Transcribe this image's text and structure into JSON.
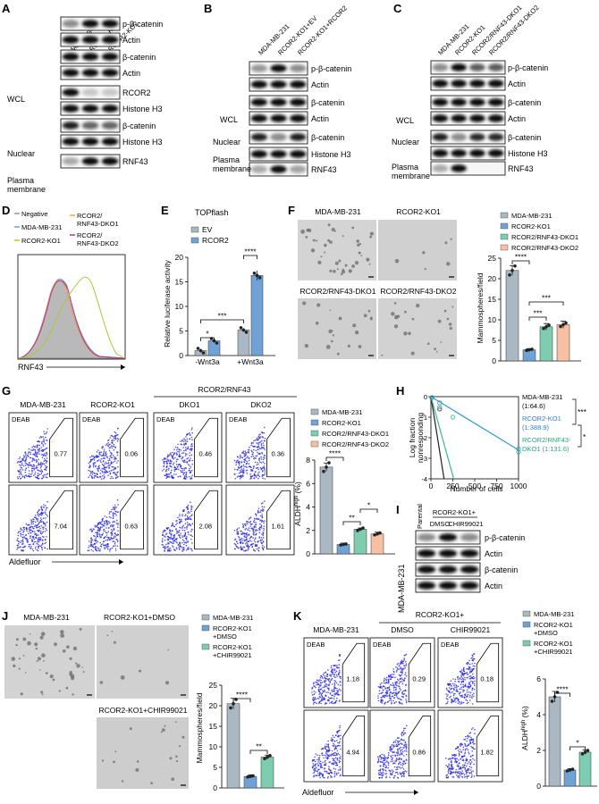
{
  "panels": {
    "A": {
      "letter": "A",
      "lanes": [
        "MDA-MB-231",
        "RCOR2-KO1",
        "RCOR2-KO2"
      ],
      "rows": [
        "p-β-catenin",
        "Actin",
        "β-catenin",
        "Actin",
        "RCOR2",
        "Histone H3",
        "β-catenin",
        "Histone H3",
        "RNF43"
      ],
      "groups": [
        "WCL",
        "Nuclear",
        "Plasma",
        "membrane"
      ]
    },
    "B": {
      "letter": "B",
      "lanes": [
        "MDA-MB-231",
        "RCOR2-KO1+EV",
        "RCOR2-KO1+RCOR2"
      ],
      "rows": [
        "p-β-catenin",
        "Actin",
        "β-catenin",
        "Actin",
        "β-catenin",
        "Histone H3",
        "RNF43"
      ],
      "groups": [
        "WCL",
        "Nuclear",
        "Plasma",
        "membrane"
      ]
    },
    "C": {
      "letter": "C",
      "lanes": [
        "MDA-MB-231",
        "RCOR2-KO1",
        "RCOR2/RNF43-DKO1",
        "RCOR2/RNF43-DKO2"
      ],
      "rows": [
        "p-β-catenin",
        "Actin",
        "β-catenin",
        "Actin",
        "β-catenin",
        "Histone H3",
        "RNF43"
      ],
      "groups": [
        "WCL",
        "Nuclear",
        "Plasma",
        "membrane"
      ]
    },
    "D": {
      "letter": "D",
      "legend": [
        "Negative",
        "MDA-MB-231",
        "RCOR2-KO1",
        "RCOR2/",
        "RNF43-DKO1",
        "RCOR2/",
        "RNF43-DKO2"
      ],
      "xlabel": "RNF43"
    },
    "E": {
      "letter": "E",
      "title": "TOPflash",
      "legend": [
        "EV",
        "RCOR2"
      ],
      "ylabel": "Relative luciferase activity",
      "xlabels": [
        "-Wnt3a",
        "+Wnt3a"
      ],
      "yticks": [
        "0",
        "5",
        "10",
        "15",
        "20"
      ],
      "sig": [
        "*",
        "***",
        "****"
      ]
    },
    "F": {
      "letter": "F",
      "images": [
        "MDA-MB-231",
        "RCOR2-KO1",
        "RCOR2/RNF43-DKO1",
        "RCOR2/RNF43-DKO2"
      ],
      "legend": [
        "MDA-MB-231",
        "RCOR2-KO1",
        "RCOR2/RNF43-DKO1",
        "RCOR2/RNF43-DKO2"
      ],
      "ylabel": "Mammospheres/field",
      "yticks": [
        "0",
        "5",
        "10",
        "15",
        "20",
        "25"
      ],
      "sig": [
        "****",
        "***",
        "***"
      ]
    },
    "G": {
      "letter": "G",
      "header": "RCOR2/RNF43",
      "columns": [
        "MDA-MB-231",
        "RCOR2-KO1",
        "DKO1",
        "DKO2"
      ],
      "deab": "DEAB",
      "gates_top": [
        "0.77",
        "0.06",
        "0.46",
        "0.36"
      ],
      "gates_bottom": [
        "7.04",
        "0.63",
        "2.08",
        "1.61"
      ],
      "xlabel": "Aldefluor",
      "legend": [
        "MDA-MB-231",
        "RCOR2-KO1",
        "RCOR2/RNF43-DKO1",
        "RCOR2/RNF43-DKO2"
      ],
      "ylabel": "ALDH",
      "ylabel_sup": "high",
      "ylabel_unit": " (%)",
      "yticks": [
        "0",
        "2",
        "4",
        "6",
        "8"
      ],
      "sig": [
        "****",
        "**",
        "*"
      ]
    },
    "H": {
      "letter": "H",
      "ylabel1": "Log fraction",
      "ylabel2": "nonresponding",
      "xlabel": "Number of cells",
      "xticks": [
        "0",
        "250",
        "500",
        "750",
        "1000"
      ],
      "yticks": [
        "0",
        "-1",
        "-2",
        "-3",
        "-4"
      ],
      "legend": [
        "MDA-MB-231",
        "(1:64.6)",
        "RCOR2-KO1",
        "(1:388.9)",
        "RCOR2/RNF43-",
        "DKO1 (1:131.6)"
      ],
      "sig": [
        "***",
        "*"
      ]
    },
    "I": {
      "letter": "I",
      "header": "RCOR2-KO1+",
      "lanes": [
        "Parental",
        "DMSO",
        "CHIR99021"
      ],
      "cell": "MDA-MB-231",
      "rows": [
        "p-β-catenin",
        "Actin",
        "β-catenin",
        "Actin"
      ]
    },
    "J": {
      "letter": "J",
      "images": [
        "MDA-MB-231",
        "RCOR2-KO1+DMSO",
        "RCOR2-KO1+CHIR99021"
      ],
      "legend": [
        "MDA-MB-231",
        "RCOR2-KO1",
        "+DMSO",
        "RCOR2-KO1",
        "+CHIR99021"
      ],
      "ylabel": "Mammospheres/field",
      "yticks": [
        "0",
        "5",
        "10",
        "15",
        "20",
        "25"
      ],
      "sig": [
        "****",
        "**"
      ]
    },
    "K": {
      "letter": "K",
      "header": "RCOR2-KO1+",
      "columns": [
        "MDA-MB-231",
        "DMSO",
        "CHIR99021"
      ],
      "deab": "DEAB",
      "gates_top": [
        "1.18",
        "0.29",
        "0.18"
      ],
      "gates_bottom": [
        "4.94",
        "0.86",
        "1.82"
      ],
      "xlabel": "Aldefluor",
      "legend": [
        "MDA-MB-231",
        "RCOR2-KO1",
        "+DMSO",
        "RCOR2-KO1",
        "+CHIR99021"
      ],
      "ylabel": "ALDH",
      "ylabel_sup": "high",
      "ylabel_unit": " (%)",
      "yticks": [
        "0",
        "2",
        "4",
        "6"
      ],
      "sig": [
        "****",
        "*"
      ]
    }
  },
  "colors": {
    "gray": "#a9b8c2",
    "blue": "#6fa3d6",
    "green": "#7fcdb0",
    "salmon": "#f7c0a3",
    "dots": "#2424e0"
  },
  "chart_data": [
    {
      "type": "bar",
      "panel": "E",
      "title": "TOPflash",
      "categories": [
        "-Wnt3a",
        "+Wnt3a"
      ],
      "series": [
        {
          "name": "EV",
          "values": [
            1.0,
            5.2
          ]
        },
        {
          "name": "RCOR2",
          "values": [
            3.0,
            16.3
          ]
        }
      ],
      "ylabel": "Relative luciferase activity",
      "ylim": [
        0,
        20
      ]
    },
    {
      "type": "bar",
      "panel": "F",
      "categories": [
        "MDA-MB-231",
        "RCOR2-KO1",
        "RCOR2/RNF43-DKO1",
        "RCOR2/RNF43-DKO2"
      ],
      "values": [
        22,
        2.7,
        8.3,
        8.8
      ],
      "ylabel": "Mammospheres/field",
      "ylim": [
        0,
        25
      ]
    },
    {
      "type": "bar",
      "panel": "G",
      "categories": [
        "MDA-MB-231",
        "RCOR2-KO1",
        "RCOR2/RNF43-DKO1",
        "RCOR2/RNF43-DKO2"
      ],
      "values": [
        7.4,
        0.8,
        2.1,
        1.7
      ],
      "ylabel": "ALDH high (%)",
      "ylim": [
        0,
        8
      ]
    },
    {
      "type": "line",
      "panel": "H",
      "xlabel": "Number of cells",
      "ylabel": "Log fraction nonresponding",
      "xlim": [
        0,
        1000
      ],
      "ylim": [
        -4,
        0
      ],
      "series": [
        {
          "name": "MDA-MB-231",
          "x": [
            0,
            150
          ],
          "y": [
            0,
            -4
          ]
        },
        {
          "name": "RCOR2-KO1",
          "x": [
            0,
            1000
          ],
          "y": [
            0,
            -2.6
          ]
        },
        {
          "name": "RCOR2/RNF43-DKO1",
          "x": [
            0,
            260
          ],
          "y": [
            0,
            -4
          ]
        }
      ]
    },
    {
      "type": "bar",
      "panel": "J",
      "categories": [
        "MDA-MB-231",
        "RCOR2-KO1+DMSO",
        "RCOR2-KO1+CHIR99021"
      ],
      "values": [
        20.5,
        2.8,
        7.5
      ],
      "ylabel": "Mammospheres/field",
      "ylim": [
        0,
        25
      ]
    },
    {
      "type": "bar",
      "panel": "K",
      "categories": [
        "MDA-MB-231",
        "RCOR2-KO1+DMSO",
        "RCOR2-KO1+CHIR99021"
      ],
      "values": [
        5.0,
        0.9,
        1.9
      ],
      "ylabel": "ALDH high (%)",
      "ylim": [
        0,
        6
      ]
    }
  ]
}
